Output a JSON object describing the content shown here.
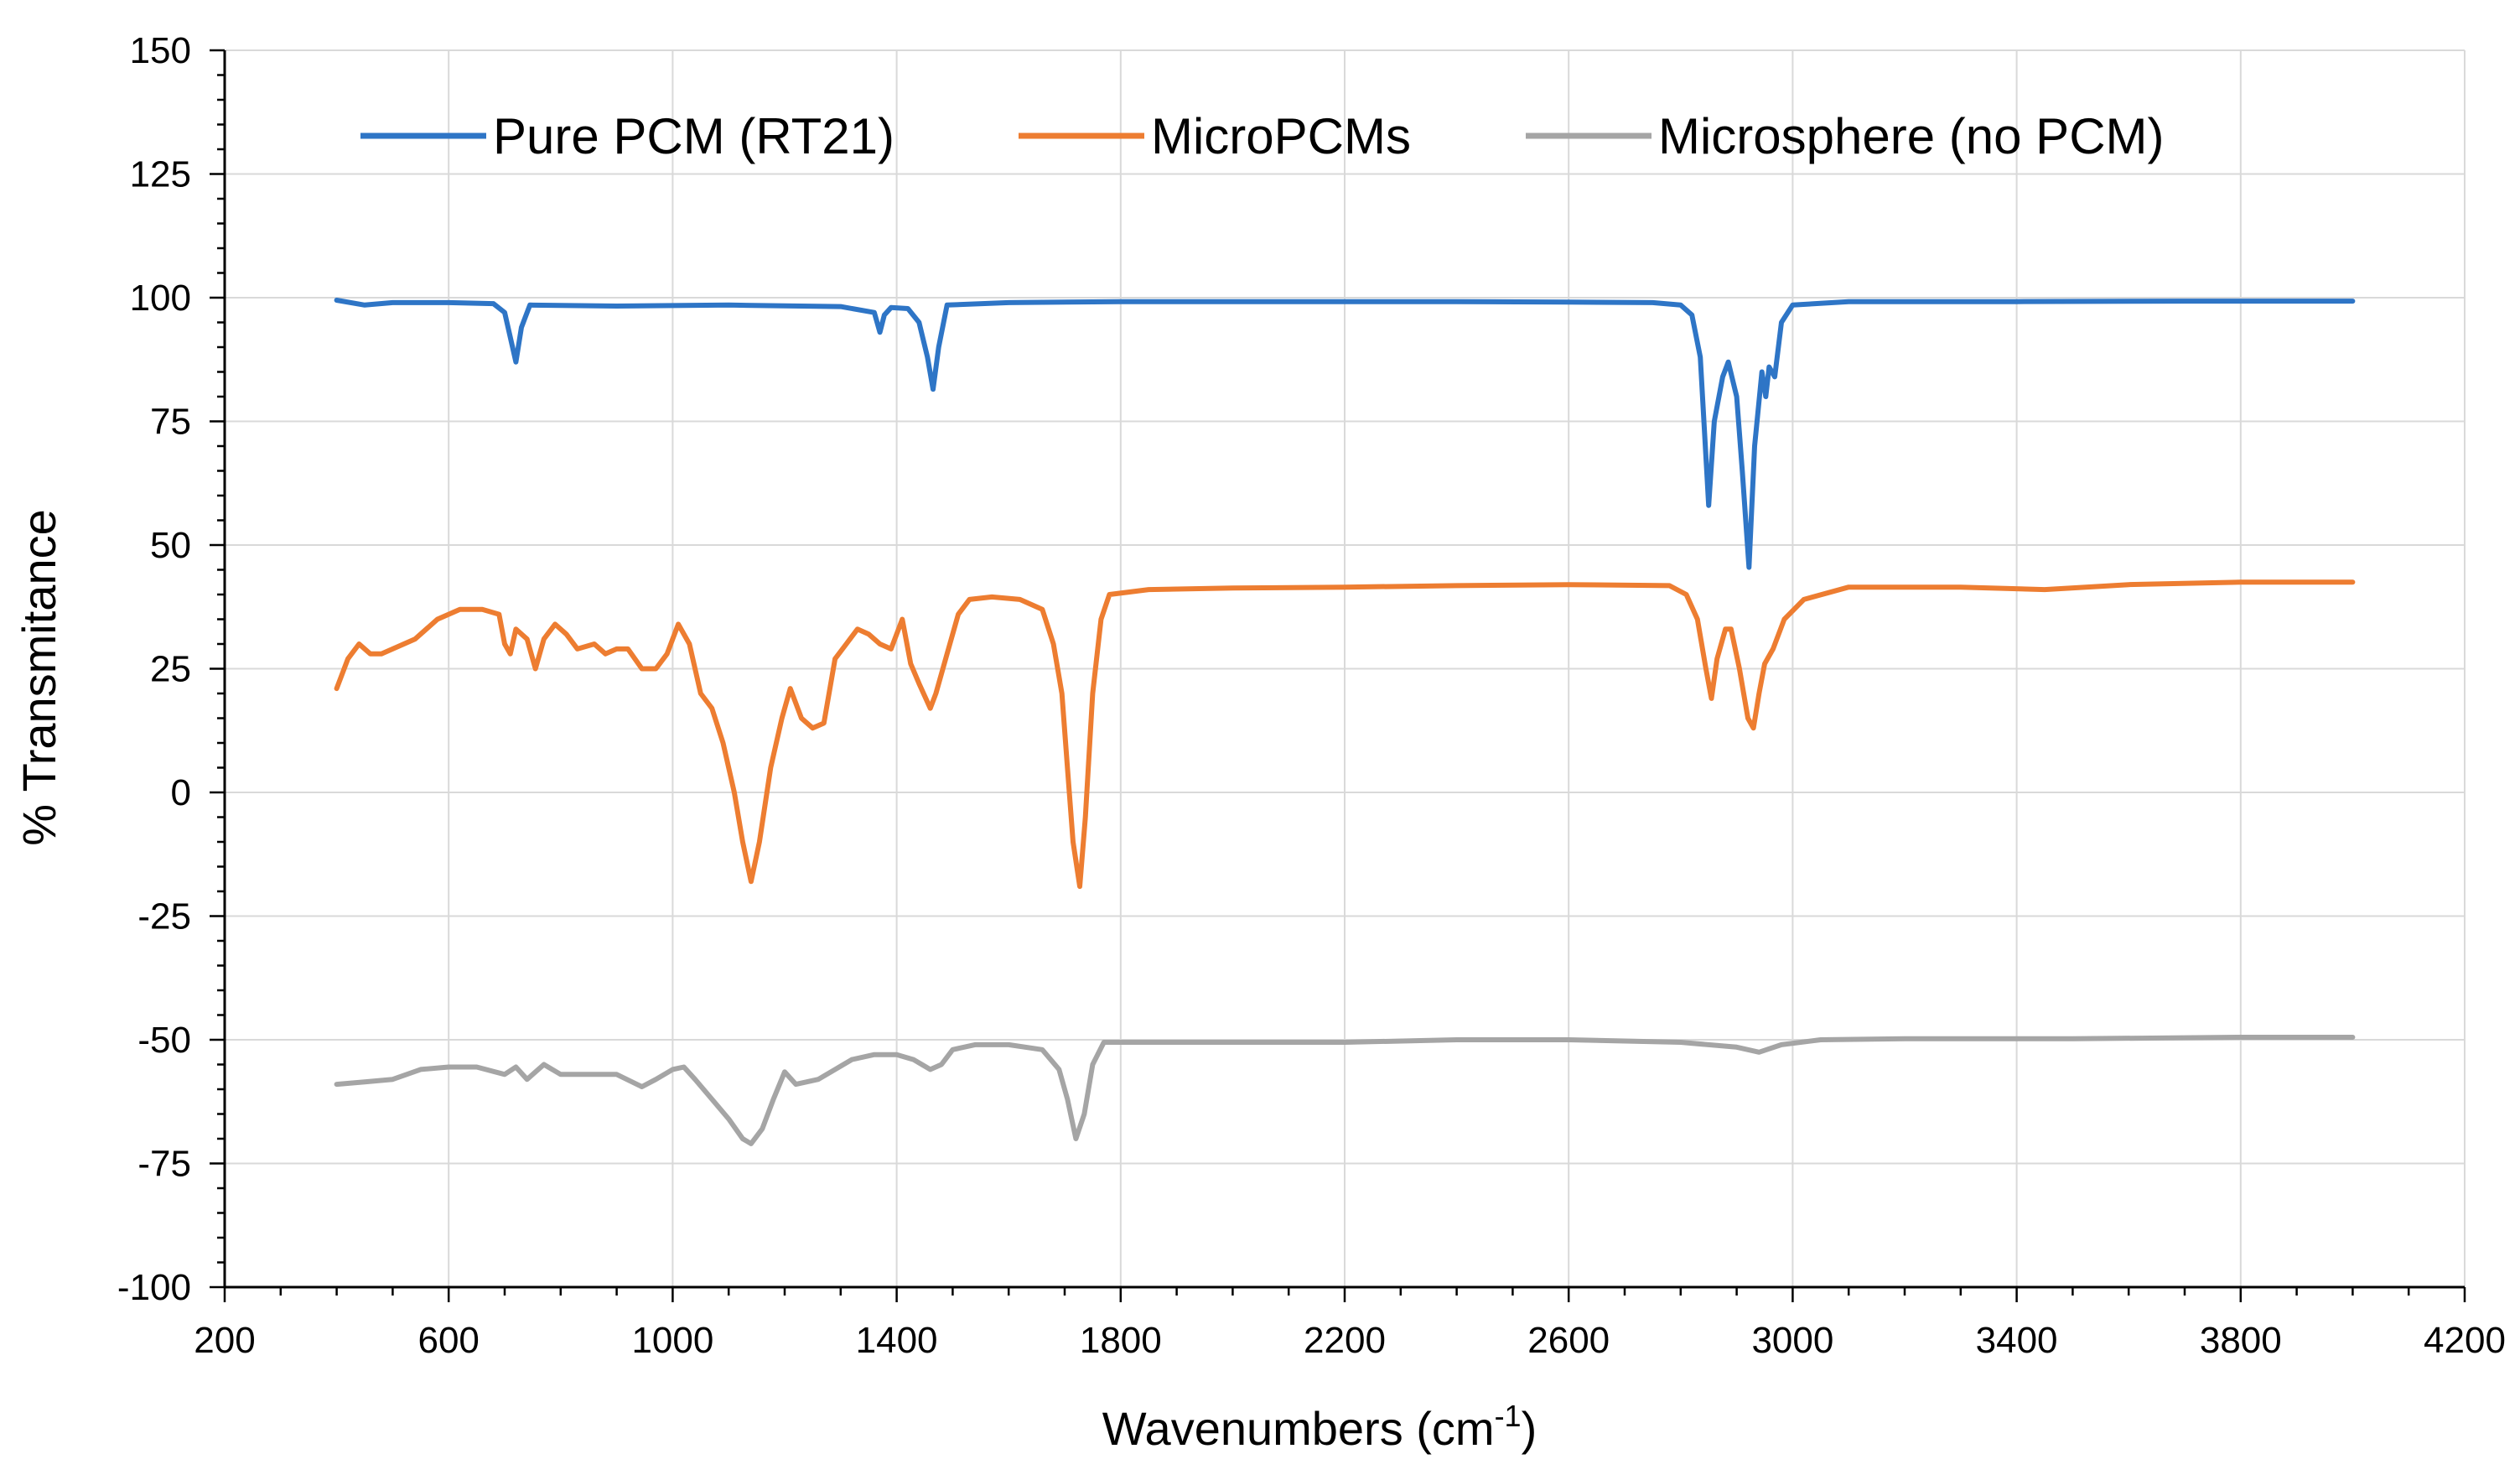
{
  "chart_data": {
    "type": "line",
    "title": "",
    "xlabel": "Wavenumbers (cm",
    "xlabel_sup": "-1",
    "xlabel_suffix": ")",
    "ylabel": "% Transmitance",
    "xlim": [
      200,
      4200
    ],
    "ylim": [
      -100,
      150
    ],
    "xticks": [
      200,
      600,
      1000,
      1400,
      1800,
      2200,
      2600,
      3000,
      3400,
      3800,
      4200
    ],
    "yticks": [
      -100,
      -75,
      -50,
      -25,
      0,
      25,
      50,
      75,
      100,
      125,
      150
    ],
    "grid": true,
    "legend_position": "top",
    "series": [
      {
        "name": "Pure PCM (RT21)",
        "color": "#2e75c6",
        "points": [
          [
            400,
            99.5
          ],
          [
            450,
            98.5
          ],
          [
            500,
            99
          ],
          [
            600,
            99
          ],
          [
            680,
            98.8
          ],
          [
            700,
            97
          ],
          [
            710,
            92
          ],
          [
            720,
            87
          ],
          [
            730,
            94
          ],
          [
            745,
            98.5
          ],
          [
            900,
            98.3
          ],
          [
            1100,
            98.5
          ],
          [
            1300,
            98.2
          ],
          [
            1360,
            97
          ],
          [
            1370,
            93
          ],
          [
            1378,
            96.5
          ],
          [
            1390,
            98
          ],
          [
            1420,
            97.8
          ],
          [
            1440,
            95
          ],
          [
            1455,
            88
          ],
          [
            1465,
            81.5
          ],
          [
            1475,
            90
          ],
          [
            1490,
            98.5
          ],
          [
            1600,
            99
          ],
          [
            1800,
            99.2
          ],
          [
            2000,
            99.2
          ],
          [
            2200,
            99.2
          ],
          [
            2400,
            99.2
          ],
          [
            2600,
            99.1
          ],
          [
            2750,
            99
          ],
          [
            2800,
            98.5
          ],
          [
            2820,
            96.5
          ],
          [
            2835,
            88
          ],
          [
            2850,
            58
          ],
          [
            2860,
            75
          ],
          [
            2875,
            84
          ],
          [
            2885,
            87
          ],
          [
            2900,
            80
          ],
          [
            2910,
            65
          ],
          [
            2922,
            45.5
          ],
          [
            2932,
            70
          ],
          [
            2945,
            85
          ],
          [
            2952,
            80
          ],
          [
            2958,
            86
          ],
          [
            2968,
            84
          ],
          [
            2980,
            95
          ],
          [
            3000,
            98.5
          ],
          [
            3100,
            99.2
          ],
          [
            3400,
            99.2
          ],
          [
            3700,
            99.3
          ],
          [
            4000,
            99.3
          ]
        ]
      },
      {
        "name": "MicroPCMs",
        "color": "#ed7d31",
        "points": [
          [
            400,
            21
          ],
          [
            410,
            24
          ],
          [
            420,
            27
          ],
          [
            440,
            30
          ],
          [
            460,
            28
          ],
          [
            480,
            28
          ],
          [
            500,
            29
          ],
          [
            540,
            31
          ],
          [
            580,
            35
          ],
          [
            620,
            37
          ],
          [
            660,
            37
          ],
          [
            690,
            36
          ],
          [
            700,
            30
          ],
          [
            710,
            28
          ],
          [
            720,
            33
          ],
          [
            740,
            31
          ],
          [
            755,
            25
          ],
          [
            770,
            31
          ],
          [
            790,
            34
          ],
          [
            810,
            32
          ],
          [
            830,
            29
          ],
          [
            860,
            30
          ],
          [
            880,
            28
          ],
          [
            900,
            29
          ],
          [
            920,
            29
          ],
          [
            945,
            25
          ],
          [
            970,
            25
          ],
          [
            990,
            28
          ],
          [
            1010,
            34
          ],
          [
            1030,
            30
          ],
          [
            1050,
            20
          ],
          [
            1070,
            17
          ],
          [
            1090,
            10
          ],
          [
            1110,
            0
          ],
          [
            1125,
            -10
          ],
          [
            1140,
            -18
          ],
          [
            1155,
            -10
          ],
          [
            1175,
            5
          ],
          [
            1195,
            15
          ],
          [
            1210,
            21
          ],
          [
            1230,
            15
          ],
          [
            1250,
            13
          ],
          [
            1270,
            14
          ],
          [
            1290,
            27
          ],
          [
            1310,
            30
          ],
          [
            1330,
            33
          ],
          [
            1350,
            32
          ],
          [
            1370,
            30
          ],
          [
            1390,
            29
          ],
          [
            1410,
            35
          ],
          [
            1425,
            26
          ],
          [
            1440,
            22
          ],
          [
            1460,
            17
          ],
          [
            1470,
            20
          ],
          [
            1490,
            28
          ],
          [
            1510,
            36
          ],
          [
            1530,
            39
          ],
          [
            1570,
            39.5
          ],
          [
            1620,
            39
          ],
          [
            1660,
            37
          ],
          [
            1680,
            30
          ],
          [
            1695,
            20
          ],
          [
            1705,
            5
          ],
          [
            1715,
            -10
          ],
          [
            1727,
            -19
          ],
          [
            1737,
            -5
          ],
          [
            1750,
            20
          ],
          [
            1765,
            35
          ],
          [
            1780,
            40
          ],
          [
            1850,
            41
          ],
          [
            2000,
            41.3
          ],
          [
            2200,
            41.5
          ],
          [
            2400,
            41.8
          ],
          [
            2600,
            42
          ],
          [
            2780,
            41.8
          ],
          [
            2810,
            40
          ],
          [
            2830,
            35
          ],
          [
            2845,
            25
          ],
          [
            2855,
            19
          ],
          [
            2865,
            27
          ],
          [
            2880,
            33
          ],
          [
            2890,
            33
          ],
          [
            2905,
            25
          ],
          [
            2920,
            15
          ],
          [
            2930,
            13
          ],
          [
            2940,
            20
          ],
          [
            2950,
            26
          ],
          [
            2965,
            29
          ],
          [
            2985,
            35
          ],
          [
            3020,
            39
          ],
          [
            3100,
            41.5
          ],
          [
            3300,
            41.5
          ],
          [
            3450,
            41
          ],
          [
            3600,
            42
          ],
          [
            3800,
            42.5
          ],
          [
            4000,
            42.5
          ]
        ]
      },
      {
        "name": "Microsphere (no PCM)",
        "color": "#a5a5a5",
        "points": [
          [
            400,
            -59
          ],
          [
            450,
            -58.5
          ],
          [
            500,
            -58
          ],
          [
            550,
            -56
          ],
          [
            600,
            -55.5
          ],
          [
            650,
            -55.5
          ],
          [
            700,
            -57
          ],
          [
            720,
            -55.5
          ],
          [
            740,
            -58
          ],
          [
            770,
            -55
          ],
          [
            800,
            -57
          ],
          [
            850,
            -57
          ],
          [
            900,
            -57
          ],
          [
            945,
            -59.5
          ],
          [
            970,
            -58
          ],
          [
            1000,
            -56
          ],
          [
            1020,
            -55.5
          ],
          [
            1040,
            -58
          ],
          [
            1070,
            -62
          ],
          [
            1100,
            -66
          ],
          [
            1125,
            -70
          ],
          [
            1140,
            -71
          ],
          [
            1160,
            -68
          ],
          [
            1180,
            -62
          ],
          [
            1200,
            -56.5
          ],
          [
            1220,
            -59
          ],
          [
            1260,
            -58
          ],
          [
            1290,
            -56
          ],
          [
            1320,
            -54
          ],
          [
            1360,
            -53
          ],
          [
            1400,
            -53
          ],
          [
            1430,
            -54
          ],
          [
            1460,
            -56
          ],
          [
            1480,
            -55
          ],
          [
            1500,
            -52
          ],
          [
            1540,
            -51
          ],
          [
            1600,
            -51
          ],
          [
            1660,
            -52
          ],
          [
            1690,
            -56
          ],
          [
            1705,
            -62
          ],
          [
            1720,
            -70
          ],
          [
            1735,
            -65
          ],
          [
            1750,
            -55
          ],
          [
            1770,
            -50.5
          ],
          [
            1850,
            -50.5
          ],
          [
            2000,
            -50.5
          ],
          [
            2200,
            -50.5
          ],
          [
            2400,
            -50
          ],
          [
            2600,
            -50
          ],
          [
            2800,
            -50.5
          ],
          [
            2900,
            -51.5
          ],
          [
            2940,
            -52.5
          ],
          [
            2980,
            -51
          ],
          [
            3050,
            -50
          ],
          [
            3200,
            -49.8
          ],
          [
            3500,
            -49.8
          ],
          [
            3800,
            -49.5
          ],
          [
            4000,
            -49.5
          ]
        ]
      }
    ]
  }
}
